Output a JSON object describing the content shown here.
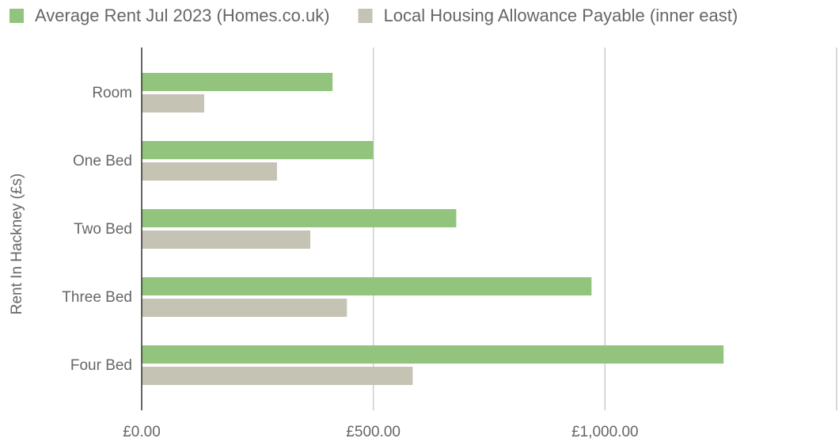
{
  "chart_data": {
    "type": "bar",
    "orientation": "horizontal",
    "y_label": "Rent In Hackney (£s)",
    "categories": [
      "Room",
      "One Bed",
      "Two Bed",
      "Three Bed",
      "Four Bed"
    ],
    "series": [
      {
        "name": "Average Rent Jul 2023 (Homes.co.uk)",
        "color": "#93c47d",
        "values": [
          412,
          500,
          679,
          971,
          1256
        ]
      },
      {
        "name": "Local Housing Allowance Payable (inner east)",
        "color": "#c5c3b3",
        "values": [
          135,
          292,
          364,
          443,
          585
        ]
      }
    ],
    "xlim": [
      0,
      1500
    ],
    "xticks": [
      {
        "value": 0,
        "label": "£0.00"
      },
      {
        "value": 500,
        "label": "£500.00"
      },
      {
        "value": 1000,
        "label": "£1,000.00"
      }
    ],
    "grid": true,
    "legend": "top"
  }
}
